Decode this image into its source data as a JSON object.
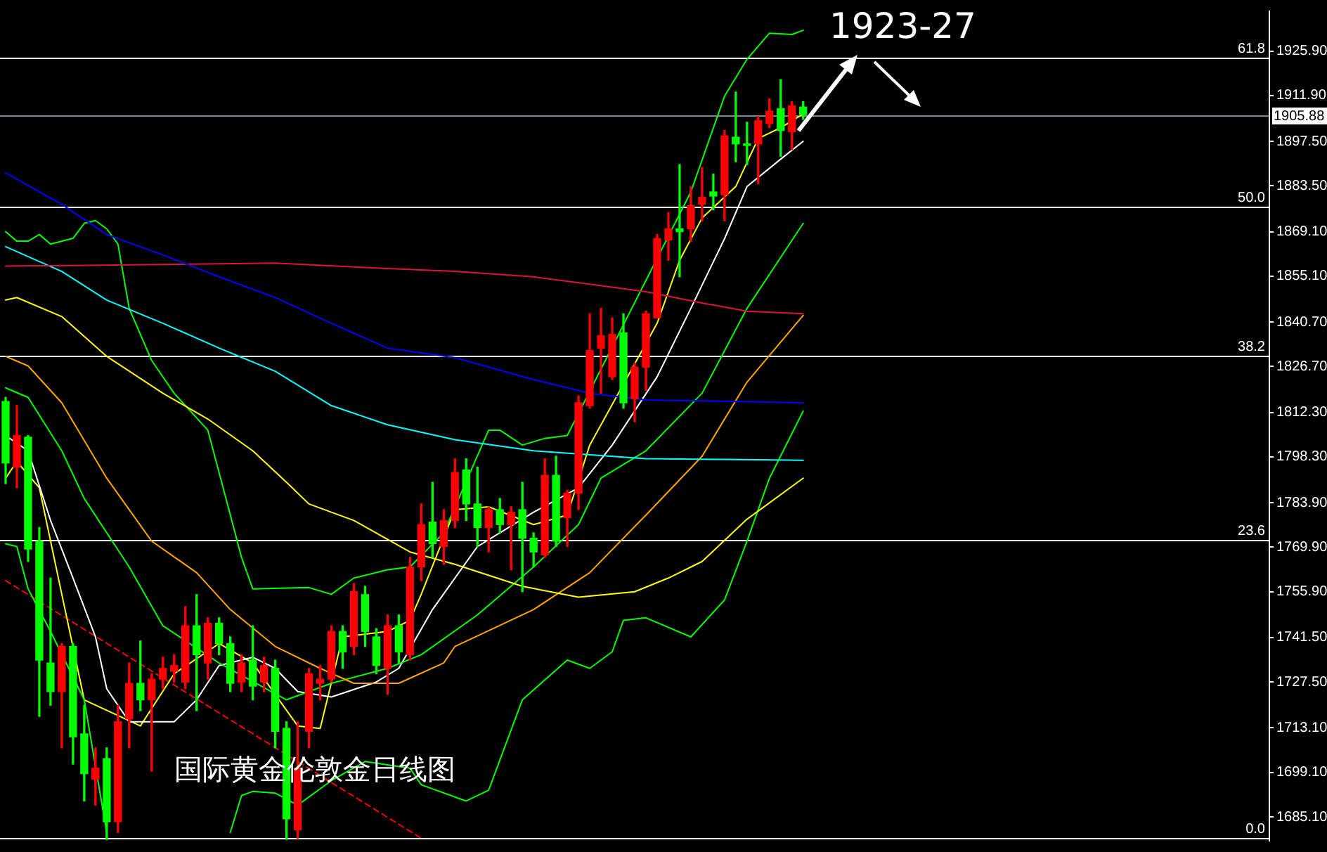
{
  "chart_data": {
    "type": "candlestick",
    "title": "国际黄金伦敦金日线图",
    "annotations": [
      "1923-27"
    ],
    "categories": [
      null,
      null,
      null,
      null,
      null,
      null,
      null,
      null,
      null,
      null,
      null,
      null,
      null,
      null,
      null,
      null,
      null,
      null,
      null,
      null,
      null,
      null,
      null,
      null,
      null,
      null,
      null,
      null,
      null,
      null,
      null,
      null,
      null,
      null,
      null,
      null,
      null,
      null,
      null,
      null,
      null,
      null,
      null,
      null,
      null,
      null,
      null,
      null,
      null,
      null,
      null,
      null,
      null,
      null,
      null,
      null,
      null,
      null,
      null,
      null,
      null,
      null,
      null,
      null,
      null,
      null,
      null,
      null,
      null,
      null,
      null,
      null,
      null,
      null,
      null,
      null,
      null,
      null,
      null,
      null,
      null,
      null,
      null,
      null,
      null,
      null,
      null,
      null,
      null,
      null,
      null,
      null,
      null,
      null,
      null,
      null,
      null,
      null,
      null,
      null,
      null,
      null,
      null,
      null,
      null,
      null,
      null,
      null,
      null,
      null,
      null,
      null,
      null
    ],
    "ohlc": [
      [
        1815.7,
        1817.0,
        1789.9,
        1796.4
      ],
      [
        1795.1,
        1814.4,
        1788.6,
        1805.0
      ],
      [
        1804.5,
        1805.0,
        1765.4,
        1769.3
      ],
      [
        1771.8,
        1776.1,
        1716.7,
        1734.4
      ],
      [
        1733.5,
        1760.2,
        1720.2,
        1724.5
      ],
      [
        1724.5,
        1739.6,
        1706.8,
        1738.7
      ],
      [
        1738.7,
        1739.6,
        1701.7,
        1710.3
      ],
      [
        1711.2,
        1720.2,
        1690.1,
        1698.7
      ],
      [
        1696.9,
        1706.8,
        1688.8,
        1700.4
      ],
      [
        1703.4,
        1706.8,
        1678.0,
        1683.6
      ],
      [
        1683.6,
        1720.2,
        1680.2,
        1715.0
      ],
      [
        1715.9,
        1733.5,
        1706.8,
        1727.1
      ],
      [
        1727.1,
        1740.4,
        1718.5,
        1721.9
      ],
      [
        1721.9,
        1730.1,
        1699.5,
        1728.4
      ],
      [
        1728.4,
        1735.3,
        1725.4,
        1731.8
      ],
      [
        1730.9,
        1736.1,
        1727.5,
        1732.7
      ],
      [
        1727.5,
        1751.2,
        1725.4,
        1745.2
      ],
      [
        1745.2,
        1755.0,
        1718.5,
        1736.1
      ],
      [
        1733.5,
        1747.7,
        1728.4,
        1746.0
      ],
      [
        1746.0,
        1747.7,
        1736.1,
        1739.6
      ],
      [
        1739.6,
        1741.7,
        1724.5,
        1727.1
      ],
      [
        1727.5,
        1736.1,
        1724.5,
        1733.5
      ],
      [
        1734.4,
        1745.2,
        1721.9,
        1726.2
      ],
      [
        1727.5,
        1735.3,
        1724.5,
        1732.7
      ],
      [
        1731.8,
        1734.4,
        1706.8,
        1712.0
      ],
      [
        1712.9,
        1715.0,
        1678.0,
        1684.5
      ],
      [
        1681.0,
        1715.0,
        1678.4,
        1700.4
      ],
      [
        1712.0,
        1731.8,
        1706.8,
        1730.1
      ],
      [
        1727.1,
        1732.7,
        1721.9,
        1728.4
      ],
      [
        1728.4,
        1745.2,
        1727.5,
        1743.4
      ],
      [
        1743.4,
        1745.2,
        1731.8,
        1737.0
      ],
      [
        1738.7,
        1758.5,
        1736.1,
        1755.9
      ],
      [
        1755.0,
        1757.6,
        1738.7,
        1743.4
      ],
      [
        1741.7,
        1744.3,
        1730.1,
        1732.7
      ],
      [
        1731.8,
        1748.6,
        1723.6,
        1745.2
      ],
      [
        1745.2,
        1748.6,
        1733.5,
        1737.0
      ],
      [
        1736.1,
        1766.7,
        1734.4,
        1763.7
      ],
      [
        1763.7,
        1783.5,
        1759.4,
        1777.0
      ],
      [
        1777.8,
        1790.3,
        1766.7,
        1771.0
      ],
      [
        1770.1,
        1781.7,
        1764.5,
        1778.3
      ],
      [
        1778.3,
        1797.7,
        1776.1,
        1793.4
      ],
      [
        1794.2,
        1797.7,
        1778.3,
        1783.5
      ],
      [
        1783.5,
        1795.1,
        1770.1,
        1776.1
      ],
      [
        1776.1,
        1782.6,
        1768.4,
        1781.7
      ],
      [
        1781.7,
        1785.2,
        1774.4,
        1777.0
      ],
      [
        1777.0,
        1782.6,
        1762.8,
        1780.9
      ],
      [
        1781.7,
        1790.3,
        1755.9,
        1772.7
      ],
      [
        1772.7,
        1774.4,
        1763.7,
        1768.4
      ],
      [
        1767.5,
        1797.7,
        1766.7,
        1792.5
      ],
      [
        1792.5,
        1798.5,
        1770.1,
        1771.8
      ],
      [
        1779.2,
        1787.8,
        1770.1,
        1786.9
      ],
      [
        1786.9,
        1817.5,
        1781.7,
        1815.3
      ],
      [
        1814.4,
        1843.3,
        1813.6,
        1831.7
      ],
      [
        1832.5,
        1845.0,
        1818.3,
        1836.4
      ],
      [
        1823.5,
        1842.0,
        1822.6,
        1836.8
      ],
      [
        1837.3,
        1843.3,
        1813.6,
        1815.3
      ],
      [
        1816.6,
        1827.8,
        1809.3,
        1826.5
      ],
      [
        1826.5,
        1844.1,
        1819.2,
        1843.3
      ],
      [
        1842.0,
        1868.2,
        1842.0,
        1867.0
      ],
      [
        1866.5,
        1875.1,
        1860.1,
        1870.0
      ],
      [
        1870.0,
        1890.2,
        1854.9,
        1869.1
      ],
      [
        1870.0,
        1883.3,
        1866.1,
        1877.3
      ],
      [
        1877.7,
        1889.3,
        1872.5,
        1879.9
      ],
      [
        1881.6,
        1887.2,
        1876.0,
        1880.3
      ],
      [
        1880.7,
        1900.9,
        1872.5,
        1899.2
      ],
      [
        1898.8,
        1913.0,
        1891.1,
        1896.7
      ],
      [
        1896.7,
        1903.5,
        1890.2,
        1896.2
      ],
      [
        1896.7,
        1905.3,
        1884.2,
        1904.0
      ],
      [
        1903.1,
        1910.9,
        1901.8,
        1907.0
      ],
      [
        1907.8,
        1916.9,
        1892.8,
        1900.9
      ],
      [
        1900.5,
        1910.0,
        1894.9,
        1908.7
      ],
      [
        1908.3,
        1910.0,
        1904.4,
        1905.9
      ],
      null,
      null,
      null,
      null,
      null,
      null,
      null,
      null,
      null,
      null,
      null,
      null,
      null,
      null,
      null,
      null,
      null,
      null,
      null,
      null,
      null,
      null,
      null,
      null,
      null,
      null,
      null,
      null,
      null,
      null,
      null,
      null,
      null,
      null,
      null,
      null,
      null,
      null,
      null,
      null,
      null
    ],
    "colors": [
      "#00ff00",
      "#ff0000",
      "#00ff00",
      "#00ff00",
      "#00ff00",
      "#ff0000",
      "#00ff00",
      "#00ff00",
      "#ff0000",
      "#00ff00",
      "#ff0000",
      "#ff0000",
      "#00ff00",
      "#ff0000",
      "#ff0000",
      "#ff0000",
      "#ff0000",
      "#00ff00",
      "#ff0000",
      "#00ff00",
      "#00ff00",
      "#ff0000",
      "#00ff00",
      "#ff0000",
      "#00ff00",
      "#00ff00",
      "#ff0000",
      "#ff0000",
      "#ff0000",
      "#ff0000",
      "#00ff00",
      "#ff0000",
      "#00ff00",
      "#00ff00",
      "#ff0000",
      "#00ff00",
      "#ff0000",
      "#ff0000",
      "#00ff00",
      "#ff0000",
      "#ff0000",
      "#00ff00",
      "#00ff00",
      "#ff0000",
      "#00ff00",
      "#ff0000",
      "#00ff00",
      "#00ff00",
      "#ff0000",
      "#00ff00",
      "#ff0000",
      "#ff0000",
      "#ff0000",
      "#ff0000",
      "#ff0000",
      "#00ff00",
      "#ff0000",
      "#ff0000",
      "#ff0000",
      "#ff0000",
      "#00ff00",
      "#ff0000",
      "#ff0000",
      "#00ff00",
      "#ff0000",
      "#00ff00",
      "#00ff00",
      "#ff0000",
      "#ff0000",
      "#00ff00",
      "#ff0000",
      "#00ff00",
      null,
      null,
      null,
      null,
      null,
      null,
      null,
      null,
      null,
      null,
      null,
      null,
      null,
      null,
      null,
      null,
      null,
      null,
      null,
      null,
      null,
      null,
      null,
      null,
      null,
      null,
      null,
      null,
      null,
      null,
      null,
      null,
      null,
      null,
      null,
      null,
      null,
      null,
      null,
      null,
      null
    ],
    "series": [
      {
        "type": "line",
        "color": "#0000ff",
        "values": [
          1887.6,
          null,
          null,
          null,
          null,
          1877.7,
          null,
          null,
          null,
          1868.2,
          null,
          null,
          null,
          null,
          1861.8,
          null,
          null,
          null,
          null,
          1854.9,
          null,
          null,
          null,
          null,
          1848.4,
          null,
          null,
          null,
          null,
          1840.3,
          null,
          null,
          null,
          null,
          1832.5,
          null,
          null,
          null,
          null,
          null,
          1829.5,
          null,
          null,
          null,
          null,
          null,
          null,
          1822.6,
          null,
          null,
          null,
          null,
          1818.3,
          null,
          null,
          null,
          null,
          1816.2,
          null,
          null,
          null,
          null,
          null,
          null,
          1815.8,
          null,
          null,
          null,
          null,
          null,
          null,
          1815.3,
          null,
          null,
          null,
          null,
          null,
          null,
          null,
          null,
          null,
          null,
          null,
          null,
          null,
          null,
          null,
          null,
          null,
          null,
          null,
          null,
          null,
          null,
          null,
          null,
          null,
          null,
          null,
          null,
          null,
          null,
          null,
          null,
          null,
          null,
          null,
          null,
          null,
          null,
          null,
          null,
          null
        ]
      },
      {
        "type": "line",
        "color": "#dc143c",
        "values": [
          1858.3,
          null,
          null,
          null,
          null,
          null,
          null,
          1858.5,
          null,
          null,
          null,
          null,
          null,
          null,
          1858.8,
          null,
          null,
          null,
          null,
          null,
          null,
          null,
          null,
          null,
          1859.2,
          null,
          null,
          null,
          null,
          null,
          null,
          null,
          null,
          null,
          1857.5,
          null,
          null,
          null,
          null,
          null,
          1856.6,
          null,
          null,
          null,
          null,
          null,
          null,
          1854.9,
          null,
          null,
          null,
          null,
          1852.6,
          null,
          null,
          null,
          null,
          1850.2,
          null,
          null,
          null,
          null,
          1846.7,
          null,
          null,
          null,
          1844.1,
          null,
          null,
          null,
          null,
          1843.3,
          null,
          null,
          null,
          null,
          null,
          null,
          null,
          null,
          null,
          null,
          null,
          null,
          null,
          null,
          null,
          null,
          null,
          null,
          null,
          null,
          null,
          null,
          null,
          null,
          null,
          null,
          null,
          null,
          null,
          null,
          null,
          null,
          null,
          null,
          null,
          null,
          null,
          null,
          null,
          null,
          null
        ]
      },
      {
        "type": "line",
        "color": "#00ffff",
        "values": [
          1864.4,
          null,
          null,
          null,
          null,
          1856.6,
          null,
          null,
          null,
          1847.6,
          null,
          null,
          null,
          null,
          1840.3,
          null,
          null,
          null,
          null,
          1832.5,
          null,
          null,
          null,
          null,
          1825.2,
          null,
          null,
          null,
          null,
          1814.4,
          null,
          null,
          null,
          null,
          1808.4,
          null,
          null,
          null,
          null,
          null,
          1803.7,
          null,
          null,
          null,
          null,
          null,
          null,
          1800.2,
          null,
          null,
          null,
          null,
          null,
          null,
          null,
          null,
          null,
          1797.7,
          null,
          null,
          null,
          null,
          null,
          null,
          1797.5,
          null,
          null,
          null,
          null,
          null,
          null,
          1797.2,
          null,
          null,
          null,
          null,
          null,
          null,
          null,
          null,
          null,
          null,
          null,
          null,
          null,
          null,
          null,
          null,
          null,
          null,
          null,
          null,
          null,
          null,
          null,
          null,
          null,
          null,
          null,
          null,
          null,
          null,
          null,
          null,
          null,
          null,
          null,
          null,
          null,
          null,
          null,
          null,
          null
        ]
      },
      {
        "type": "line",
        "color": "#ffff00",
        "values": [
          1847.6,
          1848.4,
          null,
          null,
          null,
          1842.4,
          null,
          null,
          null,
          1829.9,
          null,
          null,
          null,
          null,
          1818.3,
          null,
          null,
          null,
          1810.2,
          null,
          null,
          null,
          1800.2,
          null,
          null,
          1790.3,
          null,
          1783.5,
          null,
          null,
          null,
          1778.3,
          null,
          null,
          null,
          null,
          1768.4,
          null,
          null,
          null,
          1764.5,
          null,
          null,
          null,
          null,
          null,
          1757.6,
          null,
          null,
          null,
          null,
          1754.2,
          null,
          null,
          null,
          null,
          1755.9,
          null,
          null,
          1760.2,
          null,
          null,
          1765.4,
          null,
          null,
          null,
          1778.7,
          null,
          null,
          null,
          null,
          1791.6,
          null,
          null,
          null,
          null,
          null,
          null,
          null,
          null,
          null,
          null,
          null,
          null,
          null,
          null,
          null,
          null,
          null,
          null,
          null,
          null,
          null,
          null,
          null,
          null,
          null,
          null,
          null,
          null,
          null,
          null,
          null,
          null,
          null,
          null,
          null,
          null,
          null,
          null,
          null,
          null,
          null
        ]
      },
      {
        "type": "line",
        "color": "#ffa500",
        "values": [
          1829.9,
          null,
          1826.9,
          null,
          null,
          1815.3,
          null,
          null,
          null,
          1791.6,
          null,
          null,
          null,
          1771.8,
          null,
          null,
          null,
          1761.9,
          null,
          null,
          1750.3,
          null,
          null,
          null,
          1738.7,
          null,
          null,
          null,
          1731.8,
          null,
          null,
          1727.1,
          null,
          null,
          null,
          1727.1,
          null,
          null,
          null,
          1733.5,
          1738.7,
          null,
          null,
          null,
          null,
          null,
          null,
          1750.3,
          null,
          null,
          null,
          null,
          1761.9,
          null,
          null,
          null,
          null,
          1780.0,
          null,
          null,
          null,
          null,
          1798.5,
          null,
          null,
          null,
          1821.8,
          null,
          null,
          null,
          null,
          1842.8,
          null,
          null,
          null,
          null,
          null,
          null,
          null,
          null,
          null,
          null,
          null,
          null,
          null,
          null,
          null,
          null,
          null,
          null,
          null,
          null,
          null,
          null,
          null,
          null,
          null,
          null,
          null,
          null,
          null,
          null,
          null,
          null,
          null,
          null,
          null,
          null,
          null,
          null,
          null,
          null,
          null
        ]
      },
      {
        "type": "line",
        "color": "#00ff00",
        "values": [
          1820.0,
          null,
          1817.0,
          null,
          null,
          1800.2,
          null,
          1785.2,
          null,
          null,
          null,
          1763.7,
          null,
          null,
          1745.2,
          null,
          null,
          null,
          null,
          1733.5,
          null,
          null,
          null,
          null,
          null,
          1721.9,
          null,
          null,
          null,
          1727.1,
          null,
          null,
          null,
          null,
          1731.8,
          null,
          null,
          1736.1,
          null,
          null,
          null,
          null,
          1748.6,
          null,
          null,
          null,
          null,
          1763.7,
          null,
          null,
          null,
          1777.0,
          null,
          1791.6,
          null,
          null,
          null,
          1800.2,
          null,
          null,
          null,
          null,
          1818.3,
          null,
          null,
          null,
          1845.0,
          null,
          null,
          null,
          null,
          1871.7,
          null,
          null,
          null,
          null,
          null,
          null,
          null,
          null,
          null,
          null,
          null,
          null,
          null,
          null,
          null,
          null,
          null,
          null,
          null,
          null,
          null,
          null,
          null,
          null,
          null,
          null,
          null,
          null,
          null,
          null,
          null,
          null,
          null,
          null,
          null,
          null,
          null,
          null,
          null,
          null,
          null
        ]
      },
      {
        "type": "line",
        "color": "#00ff00",
        "values": [
          1869.1,
          1866.1,
          1866.1,
          1868.2,
          1865.2,
          null,
          1867.0,
          1871.7,
          1872.6,
          1870.0,
          1865.2,
          1845.0,
          null,
          1828.6,
          null,
          1818.3,
          null,
          null,
          1806.7,
          1793.4,
          null,
          1766.7,
          1756.8,
          null,
          null,
          null,
          null,
          1757.2,
          null,
          1755.1,
          null,
          1760.2,
          null,
          null,
          1762.8,
          null,
          1763.7,
          null,
          null,
          1774.4,
          null,
          null,
          null,
          1806.7,
          1806.7,
          null,
          1802.0,
          null,
          1804.1,
          null,
          1805.0,
          null,
          null,
          null,
          null,
          null,
          null,
          null,
          null,
          null,
          null,
          1881.6,
          null,
          null,
          1911.7,
          null,
          1923.3,
          null,
          1931.5,
          null,
          1931.1,
          1932.4,
          null,
          null,
          null,
          null,
          null,
          null,
          null,
          null,
          null,
          null,
          null,
          null,
          null,
          null,
          null,
          null,
          null,
          null,
          null,
          null,
          null,
          null,
          null,
          null,
          null,
          null,
          null,
          null,
          null,
          null,
          null,
          null,
          null,
          null,
          null,
          null,
          null,
          null,
          null,
          null,
          null
        ]
      },
      {
        "type": "line",
        "color": "#00ff00",
        "values": [
          1771.0,
          1770.1,
          1756.8,
          null,
          1743.4,
          null,
          null,
          1721.9,
          null,
          1680.2,
          null,
          null,
          null,
          null,
          null,
          null,
          null,
          null,
          null,
          null,
          null,
          null,
          null,
          null,
          null,
          null,
          null,
          null,
          null,
          null,
          null,
          null,
          null,
          null,
          null,
          null,
          null,
          null,
          null,
          null,
          null,
          null,
          null,
          null,
          null,
          null,
          null,
          null,
          null,
          null,
          null,
          null,
          null,
          null,
          null,
          null,
          null,
          null,
          null,
          null,
          null,
          null,
          null,
          null,
          null,
          null,
          null,
          null,
          null,
          null,
          null,
          null,
          null,
          null,
          null,
          null,
          null,
          null,
          null,
          null,
          null,
          null,
          null,
          null,
          null,
          null,
          null,
          null,
          null,
          null,
          null,
          null,
          null,
          null,
          null,
          null,
          null,
          null,
          null,
          null,
          null,
          null,
          null,
          null,
          null,
          null,
          null,
          null,
          null,
          null,
          null,
          null,
          null
        ]
      },
      {
        "type": "line",
        "color": "#00ff00",
        "values": [
          null,
          null,
          null,
          null,
          null,
          null,
          null,
          null,
          null,
          null,
          null,
          null,
          null,
          null,
          null,
          null,
          null,
          null,
          null,
          null,
          1680.2,
          1691.8,
          1693.1,
          null,
          1692.6,
          null,
          1688.8,
          null,
          null,
          1696.5,
          null,
          null,
          1702.5,
          null,
          null,
          null,
          1700.4,
          1695.2,
          null,
          null,
          null,
          1690.1,
          null,
          1693.5,
          null,
          null,
          1721.9,
          null,
          null,
          null,
          1734.4,
          null,
          1731.8,
          null,
          1737.0,
          1746.9,
          null,
          1747.7,
          null,
          null,
          null,
          1741.7,
          null,
          null,
          1753.3,
          null,
          1771.8,
          null,
          1791.6,
          null,
          null,
          1812.7,
          null,
          null,
          null,
          null,
          null,
          null,
          null,
          null,
          null,
          null,
          null,
          null,
          null,
          null,
          null,
          null,
          null,
          null,
          null,
          null,
          null,
          null,
          null,
          null,
          null,
          null,
          null,
          null,
          null,
          null,
          null,
          null,
          null,
          null,
          null,
          null,
          null,
          null,
          null,
          null,
          null
        ]
      },
      {
        "type": "line",
        "color": "#ffffff",
        "values": [
          1805.0,
          null,
          1800.2,
          null,
          1778.3,
          null,
          1760.2,
          null,
          1741.7,
          1725.4,
          null,
          1715.0,
          null,
          null,
          null,
          1715.0,
          null,
          1721.9,
          null,
          1732.7,
          null,
          null,
          1735.3,
          null,
          1731.8,
          null,
          1724.5,
          null,
          null,
          1722.8,
          null,
          null,
          null,
          1727.5,
          null,
          1731.8,
          null,
          null,
          1750.3,
          null,
          null,
          null,
          1770.1,
          null,
          null,
          null,
          null,
          1780.9,
          null,
          null,
          null,
          1788.6,
          null,
          null,
          1802.0,
          null,
          null,
          null,
          1823.5,
          null,
          null,
          1845.0,
          null,
          null,
          1866.9,
          null,
          1883.3,
          null,
          null,
          1891.9,
          null,
          1897.5,
          null,
          null,
          null,
          null,
          null,
          null,
          null,
          null,
          null,
          null,
          null,
          null,
          null,
          null,
          null,
          null,
          null,
          null,
          null,
          null,
          null,
          null,
          null,
          null,
          null,
          null,
          null,
          null,
          null,
          null,
          null,
          null,
          null,
          null,
          null,
          null,
          null,
          null,
          null,
          null,
          null
        ]
      },
      {
        "type": "line",
        "color": "#ffff00",
        "values": [
          1791.6,
          1796.8,
          null,
          1788.6,
          null,
          1755.1,
          null,
          1721.9,
          null,
          null,
          null,
          null,
          1713.7,
          null,
          null,
          1730.1,
          null,
          null,
          null,
          1739.6,
          null,
          null,
          1733.5,
          null,
          null,
          null,
          1713.7,
          null,
          1712.9,
          null,
          1741.7,
          null,
          null,
          null,
          1743.4,
          null,
          1746.9,
          1755.1,
          null,
          null,
          1781.7,
          null,
          null,
          1782.6,
          null,
          null,
          null,
          1777.0,
          null,
          null,
          1780.0,
          null,
          1802.0,
          null,
          null,
          null,
          null,
          null,
          1840.3,
          null,
          1860.1,
          null,
          1873.4,
          null,
          null,
          1883.3,
          null,
          1898.4,
          null,
          1901.8,
          null,
          1906.1,
          null,
          null,
          null,
          null,
          null,
          null,
          null,
          null,
          null,
          null,
          null,
          null,
          null,
          null,
          null,
          null,
          null,
          null,
          null,
          null,
          null,
          null,
          null,
          null,
          null,
          null,
          null,
          null,
          null,
          null,
          null,
          null,
          null,
          null,
          null,
          null,
          null,
          null,
          null,
          null,
          null
        ]
      },
      {
        "type": "line",
        "color": "#ff0000",
        "line_style": "dashed",
        "values": [
          1759.4,
          null,
          null,
          null,
          null,
          null,
          null,
          null,
          null,
          1739.7,
          null,
          null,
          null,
          null,
          null,
          null,
          null,
          null,
          1720.0,
          null,
          null,
          null,
          null,
          null,
          null,
          null,
          null,
          1700.3,
          null,
          null,
          null,
          null,
          null,
          null,
          null,
          null,
          null,
          1678.4,
          null,
          null,
          null,
          null,
          null,
          null,
          null,
          null,
          null,
          null,
          null,
          null,
          null,
          null,
          null,
          null,
          null,
          null,
          null,
          null,
          null,
          null,
          null,
          null,
          null,
          null,
          null,
          null,
          null,
          null,
          null,
          null,
          null,
          null,
          null,
          null,
          null,
          null,
          null,
          null,
          null,
          null,
          null,
          null,
          null,
          null,
          null,
          null,
          null,
          null,
          null,
          null,
          null,
          null,
          null,
          null,
          null,
          null,
          null,
          null,
          null,
          null,
          null,
          null,
          null,
          null,
          null,
          null,
          null,
          null,
          null,
          null,
          null,
          null,
          null
        ]
      }
    ],
    "ylim": [
      1677.6,
      1938.4
    ],
    "y2lim": [
      -0.2,
      65.5
    ],
    "yticks": [
      {
        "value": 1925.9,
        "label": "1925.90"
      },
      {
        "value": 1911.9,
        "label": "1911.90"
      },
      {
        "value": 1897.5,
        "label": "1897.50"
      },
      {
        "value": 1883.5,
        "label": "1883.50"
      },
      {
        "value": 1869.1,
        "label": "1869.10"
      },
      {
        "value": 1855.1,
        "label": "1855.10"
      },
      {
        "value": 1840.7,
        "label": "1840.70"
      },
      {
        "value": 1826.7,
        "label": "1826.70"
      },
      {
        "value": 1812.3,
        "label": "1812.30"
      },
      {
        "value": 1798.3,
        "label": "1798.30"
      },
      {
        "value": 1783.9,
        "label": "1783.90"
      },
      {
        "value": 1769.9,
        "label": "1769.90"
      },
      {
        "value": 1755.9,
        "label": "1755.90"
      },
      {
        "value": 1741.5,
        "label": "1741.50"
      },
      {
        "value": 1727.5,
        "label": "1727.50"
      },
      {
        "value": 1713.1,
        "label": "1713.10"
      },
      {
        "value": 1699.1,
        "label": "1699.10"
      },
      {
        "value": 1685.1,
        "label": "1685.10"
      }
    ],
    "ref_lines": [
      {
        "axis": "y2",
        "value": 61.8,
        "label": "61.8"
      },
      {
        "axis": "y2",
        "value": 50.0,
        "label": "50.0"
      },
      {
        "axis": "y2",
        "value": 38.2,
        "label": "38.2"
      },
      {
        "axis": "y2",
        "value": 23.6,
        "label": "23.6"
      },
      {
        "axis": "y2",
        "value": 0.0,
        "label": "0.0"
      },
      {
        "axis": "y",
        "value": 1905.88,
        "label": "1905.88",
        "color": "#778899"
      }
    ],
    "tick_labels": "y"
  }
}
